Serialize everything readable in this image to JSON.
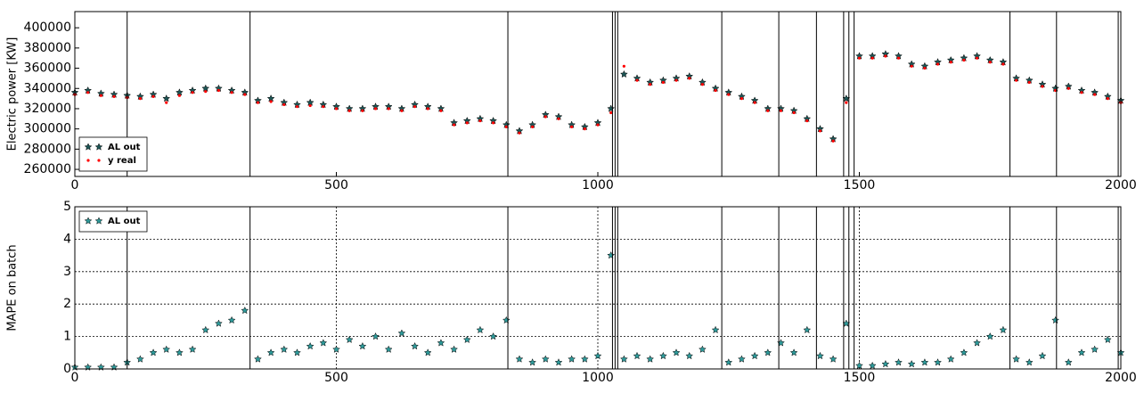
{
  "chart_data": [
    {
      "type": "scatter",
      "ylabel": "Electric power [KW]",
      "x": [
        0,
        25,
        50,
        75,
        100,
        125,
        150,
        175,
        200,
        225,
        250,
        275,
        300,
        325,
        350,
        375,
        400,
        425,
        450,
        475,
        500,
        525,
        550,
        575,
        600,
        625,
        650,
        675,
        700,
        725,
        750,
        775,
        800,
        825,
        850,
        875,
        900,
        925,
        950,
        975,
        1000,
        1025,
        1050,
        1075,
        1100,
        1125,
        1150,
        1175,
        1200,
        1225,
        1250,
        1275,
        1300,
        1325,
        1350,
        1375,
        1400,
        1425,
        1450,
        1475,
        1500,
        1525,
        1550,
        1575,
        1600,
        1625,
        1650,
        1675,
        1700,
        1725,
        1750,
        1775,
        1800,
        1825,
        1850,
        1875,
        1900,
        1925,
        1950,
        1975,
        2000
      ],
      "series": [
        {
          "name": "AL out",
          "color": "#1d5656",
          "marker": "star",
          "values": [
            336000,
            338000,
            335000,
            334000,
            333000,
            332000,
            334000,
            330000,
            336000,
            338000,
            340000,
            340000,
            338000,
            336000,
            328000,
            330000,
            326000,
            324000,
            326000,
            324000,
            322000,
            320000,
            320000,
            322000,
            322000,
            320000,
            324000,
            322000,
            320000,
            306000,
            308000,
            310000,
            308000,
            304000,
            298000,
            304000,
            314000,
            312000,
            304000,
            302000,
            306000,
            320000,
            354000,
            350000,
            346000,
            348000,
            350000,
            352000,
            346000,
            340000,
            336000,
            332000,
            328000,
            320000,
            320000,
            318000,
            310000,
            300000,
            290000,
            330000,
            372000,
            372000,
            374000,
            372000,
            364000,
            362000,
            366000,
            368000,
            370000,
            372000,
            368000,
            366000,
            350000,
            348000,
            344000,
            340000,
            342000,
            338000,
            336000,
            332000,
            328000
          ]
        },
        {
          "name": "y real",
          "color": "#ff0000",
          "marker": "dot",
          "values": [
            334000,
            336000,
            333000,
            332000,
            331000,
            330000,
            332000,
            326000,
            333000,
            336000,
            337000,
            338000,
            336000,
            334000,
            326000,
            327000,
            324000,
            322000,
            323000,
            322000,
            320000,
            318000,
            318000,
            320000,
            320000,
            318000,
            322000,
            320000,
            318000,
            304000,
            306000,
            308000,
            306000,
            302000,
            296000,
            302000,
            312000,
            310000,
            302000,
            300000,
            304000,
            316000,
            362000,
            348000,
            344000,
            346000,
            348000,
            350000,
            344000,
            338000,
            334000,
            330000,
            326000,
            318000,
            318000,
            316000,
            308000,
            298000,
            288000,
            326000,
            370000,
            370000,
            372000,
            370000,
            362000,
            360000,
            364000,
            366000,
            368000,
            370000,
            366000,
            364000,
            348000,
            346000,
            342000,
            338000,
            340000,
            336000,
            334000,
            330000,
            326000
          ]
        }
      ],
      "vlines": [
        100,
        335,
        828,
        1028,
        1033,
        1038,
        1237,
        1346,
        1418,
        1470,
        1480,
        1490,
        1788,
        1877,
        1995
      ],
      "xlim": [
        0,
        2000
      ],
      "xticks": [
        0,
        500,
        1000,
        1500,
        2000
      ],
      "ylim": [
        253000,
        416000
      ],
      "yticks": [
        260000,
        280000,
        300000,
        320000,
        340000,
        360000,
        380000,
        400000
      ],
      "grid": false,
      "legend": "lower left"
    },
    {
      "type": "scatter",
      "ylabel": "MAPE on batch",
      "x": [
        0,
        25,
        50,
        75,
        100,
        125,
        150,
        175,
        200,
        225,
        250,
        275,
        300,
        325,
        350,
        375,
        400,
        425,
        450,
        475,
        500,
        525,
        550,
        575,
        600,
        625,
        650,
        675,
        700,
        725,
        750,
        775,
        800,
        825,
        850,
        875,
        900,
        925,
        950,
        975,
        1000,
        1025,
        1050,
        1075,
        1100,
        1125,
        1150,
        1175,
        1200,
        1225,
        1250,
        1275,
        1300,
        1325,
        1350,
        1375,
        1400,
        1425,
        1450,
        1475,
        1500,
        1525,
        1550,
        1575,
        1600,
        1625,
        1650,
        1675,
        1700,
        1725,
        1750,
        1775,
        1800,
        1825,
        1850,
        1875,
        1900,
        1925,
        1950,
        1975,
        2000
      ],
      "series": [
        {
          "name": "AL out",
          "color": "#2e9a9a",
          "marker": "star",
          "values": [
            0.05,
            0.05,
            0.05,
            0.05,
            0.2,
            0.3,
            0.5,
            0.6,
            0.5,
            0.6,
            1.2,
            1.4,
            1.5,
            1.8,
            0.3,
            0.5,
            0.6,
            0.5,
            0.7,
            0.8,
            0.6,
            0.9,
            0.7,
            1.0,
            0.6,
            1.1,
            0.7,
            0.5,
            0.8,
            0.6,
            0.9,
            1.2,
            1.0,
            1.5,
            0.3,
            0.2,
            0.3,
            0.2,
            0.3,
            0.3,
            0.4,
            3.5,
            0.3,
            0.4,
            0.3,
            0.4,
            0.5,
            0.4,
            0.6,
            1.2,
            0.2,
            0.3,
            0.4,
            0.5,
            0.8,
            0.5,
            1.2,
            0.4,
            0.3,
            1.4,
            0.1,
            0.1,
            0.15,
            0.2,
            0.15,
            0.2,
            0.2,
            0.3,
            0.5,
            0.8,
            1.0,
            1.2,
            0.3,
            0.2,
            0.4,
            1.5,
            0.2,
            0.5,
            0.6,
            0.9,
            0.5
          ]
        }
      ],
      "vlines": [
        100,
        335,
        828,
        1028,
        1033,
        1038,
        1237,
        1346,
        1418,
        1470,
        1480,
        1490,
        1788,
        1877,
        1995
      ],
      "xlim": [
        0,
        2000
      ],
      "xticks": [
        0,
        500,
        1000,
        1500,
        2000
      ],
      "ylim": [
        0,
        5
      ],
      "yticks": [
        0,
        1,
        2,
        3,
        4,
        5
      ],
      "grid": true,
      "legend": "upper left"
    }
  ]
}
